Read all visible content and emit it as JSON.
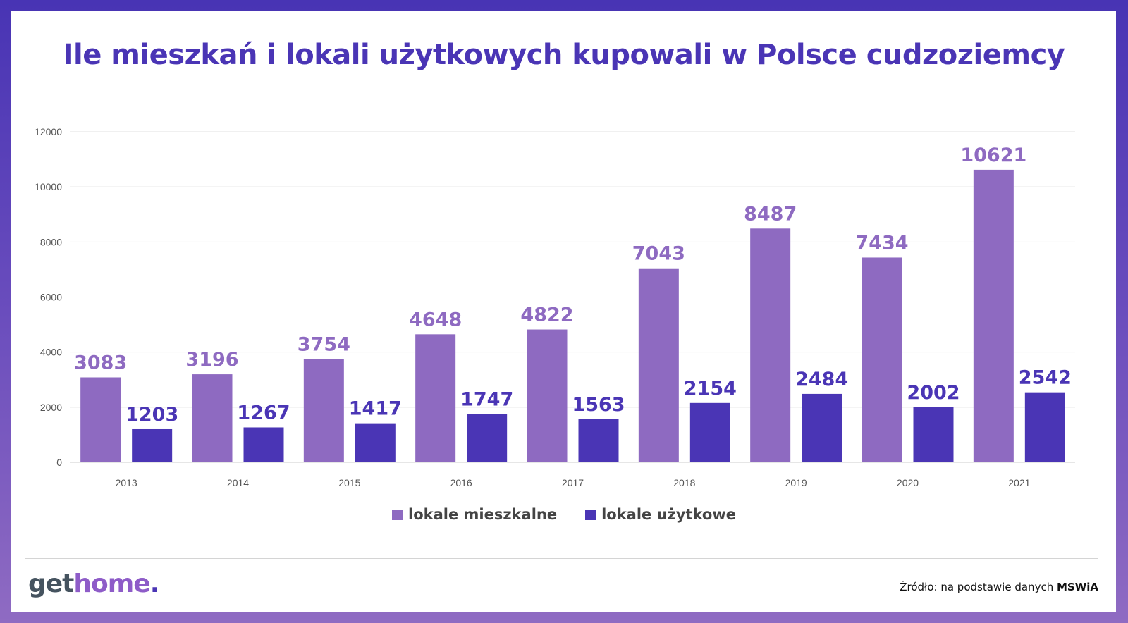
{
  "chart_data": {
    "type": "bar",
    "title": "Ile mieszkań i lokali użytkowych kupowali w Polsce cudzoziemcy",
    "categories": [
      "2013",
      "2014",
      "2015",
      "2016",
      "2017",
      "2018",
      "2019",
      "2020",
      "2021"
    ],
    "series": [
      {
        "name": "lokale mieszkalne",
        "color": "#8e6ac1",
        "values": [
          3083,
          3196,
          3754,
          4648,
          4822,
          7043,
          8487,
          7434,
          10621
        ]
      },
      {
        "name": "lokale użytkowe",
        "color": "#4a35b5",
        "values": [
          1203,
          1267,
          1417,
          1747,
          1563,
          2154,
          2484,
          2002,
          2542
        ]
      }
    ],
    "ylim": [
      0,
      12000
    ],
    "yticks": [
      0,
      2000,
      4000,
      6000,
      8000,
      10000,
      12000
    ],
    "grid": true,
    "legend_position": "bottom-center",
    "xlabel": "",
    "ylabel": ""
  },
  "footer": {
    "logo_get": "get",
    "logo_home": "home",
    "logo_dot": ".",
    "source_prefix": "Źródło: na podstawie danych ",
    "source_bold": "MSWiA"
  }
}
